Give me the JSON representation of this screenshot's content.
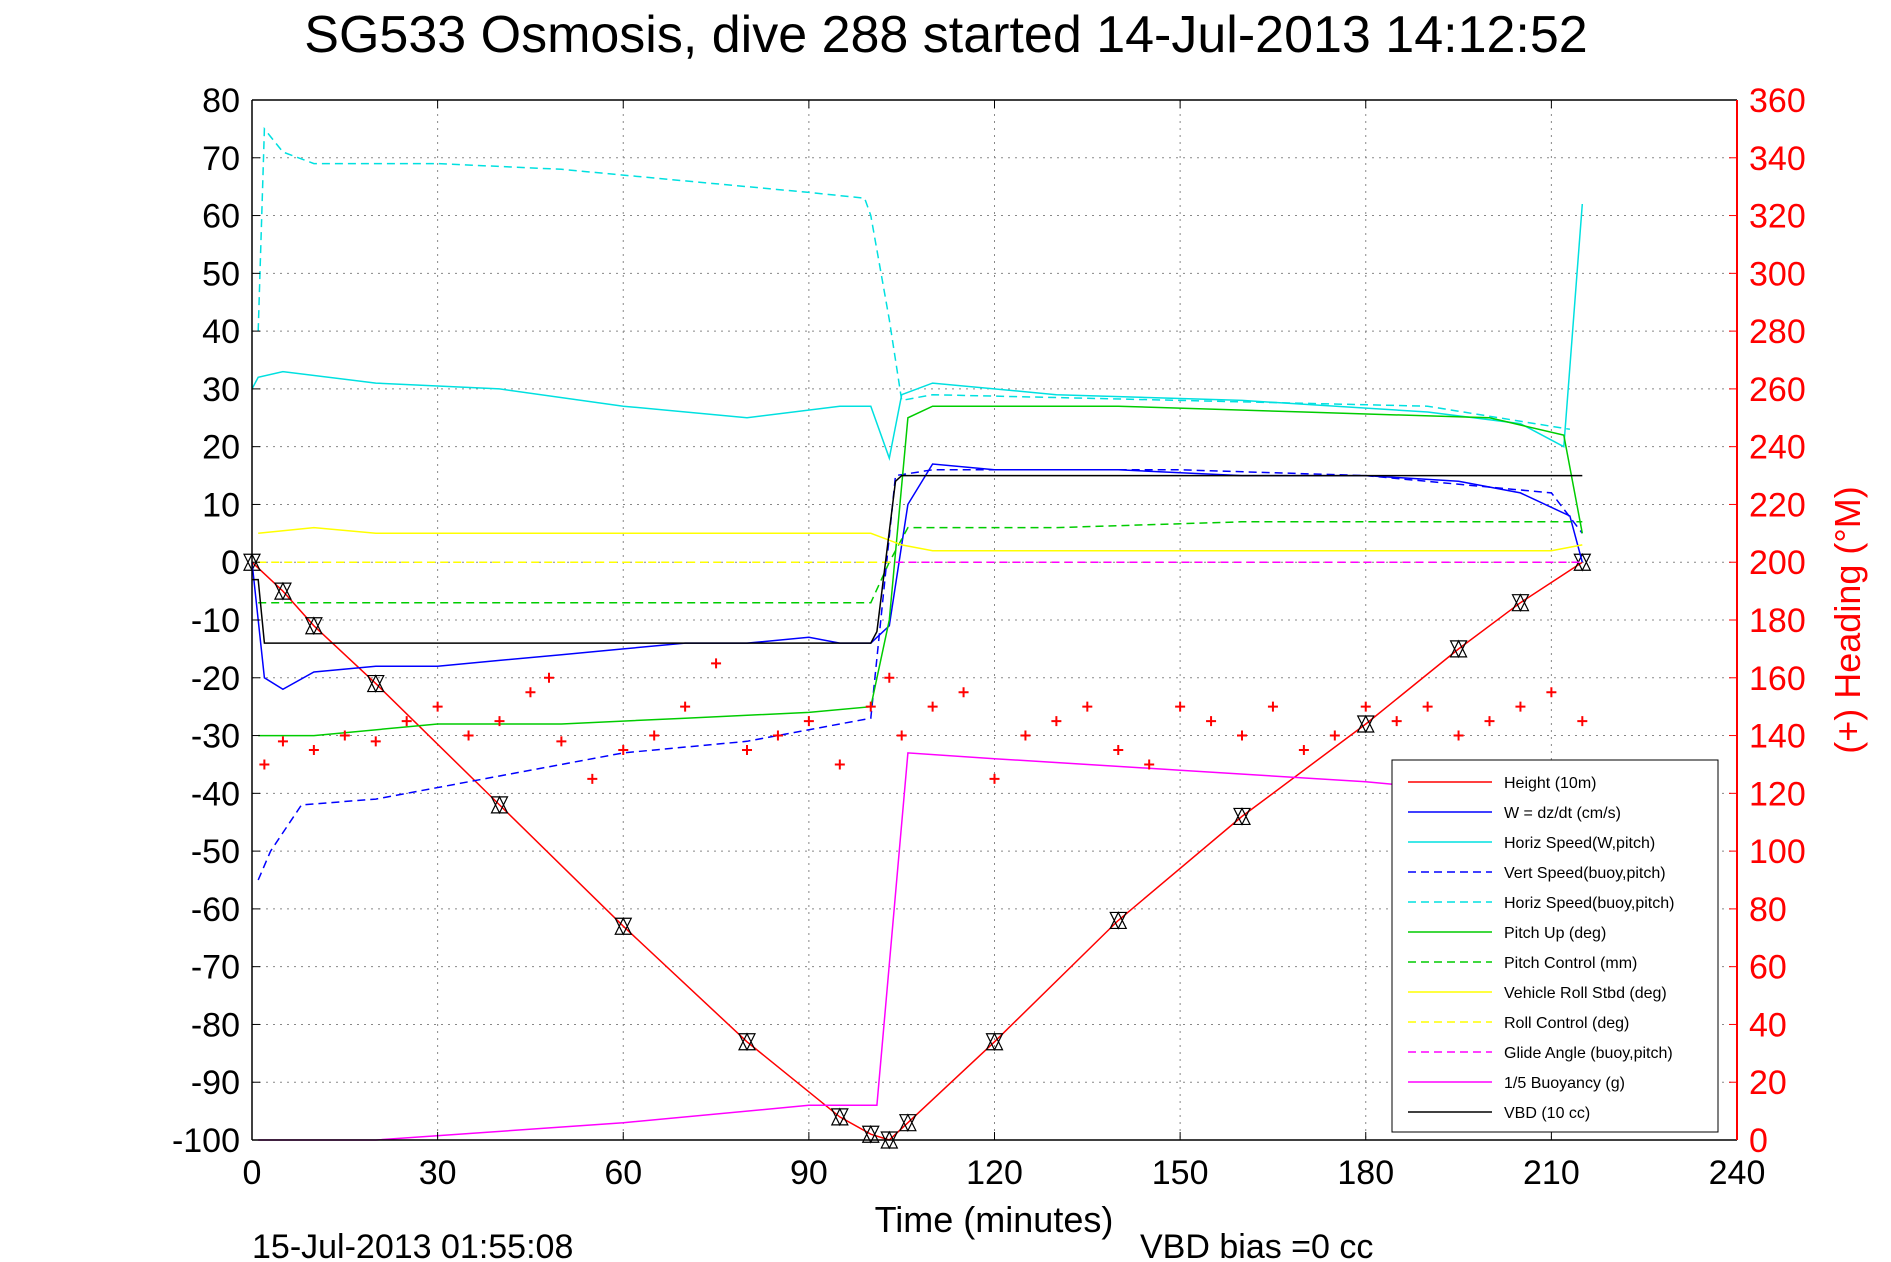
{
  "chart_data": {
    "type": "line",
    "title": "SG533 Osmosis, dive 288 started 14-Jul-2013 14:12:52",
    "xlabel": "Time (minutes)",
    "ylabel_right": "(+) Heading (°M)",
    "footer_left": "15-Jul-2013 01:55:08",
    "footer_right": "VBD bias =0 cc",
    "xlim": [
      0,
      240
    ],
    "ylim": [
      -100,
      80
    ],
    "ylim_right": [
      0,
      360
    ],
    "xticks": [
      "0",
      "30",
      "60",
      "90",
      "120",
      "150",
      "180",
      "210",
      "240"
    ],
    "yticks_left": [
      "80",
      "70",
      "60",
      "50",
      "40",
      "30",
      "20",
      "10",
      "0",
      "-10",
      "-20",
      "-30",
      "-40",
      "-50",
      "-60",
      "-70",
      "-80",
      "-90",
      "-100"
    ],
    "yticks_right": [
      "360",
      "340",
      "320",
      "300",
      "280",
      "260",
      "240",
      "220",
      "200",
      "180",
      "160",
      "140",
      "120",
      "100",
      "80",
      "60",
      "40",
      "20",
      "0"
    ],
    "grid": true,
    "legend_position": "bottom-right",
    "series": [
      {
        "name": "Height (10m)",
        "color": "#ff0000",
        "style": "solid",
        "x": [
          0,
          5,
          10,
          20,
          40,
          60,
          80,
          95,
          100,
          103,
          106,
          120,
          140,
          160,
          180,
          195,
          205,
          215
        ],
        "y": [
          0,
          -5,
          -11,
          -21,
          -42,
          -63,
          -83,
          -96,
          -99,
          -100,
          -97,
          -83,
          -62,
          -44,
          -28,
          -15,
          -7,
          0
        ]
      },
      {
        "name": "W = dz/dt (cm/s)",
        "color": "#0000ff",
        "style": "solid",
        "x": [
          0,
          2,
          5,
          10,
          20,
          30,
          40,
          50,
          60,
          70,
          80,
          90,
          95,
          100,
          103,
          106,
          110,
          120,
          140,
          160,
          180,
          195,
          205,
          213,
          215
        ],
        "y": [
          0,
          -20,
          -22,
          -19,
          -18,
          -18,
          -17,
          -16,
          -15,
          -14,
          -14,
          -13,
          -14,
          -14,
          -11,
          10,
          17,
          16,
          16,
          15,
          15,
          14,
          12,
          8,
          0
        ]
      },
      {
        "name": "Horiz Speed(W,pitch)",
        "color": "#00e0e0",
        "style": "solid",
        "x": [
          0,
          1,
          5,
          20,
          40,
          60,
          80,
          95,
          100,
          103,
          105,
          110,
          130,
          160,
          190,
          205,
          212,
          215
        ],
        "y": [
          30,
          32,
          33,
          31,
          30,
          27,
          25,
          27,
          27,
          18,
          29,
          31,
          29,
          28,
          26,
          24,
          20,
          62
        ]
      },
      {
        "name": "Vert Speed(buoy,pitch)",
        "color": "#0000ff",
        "style": "dashed",
        "x": [
          1,
          3,
          8,
          20,
          40,
          60,
          80,
          100,
          104,
          110,
          150,
          180,
          210,
          215
        ],
        "y": [
          -55,
          -50,
          -42,
          -41,
          -37,
          -33,
          -31,
          -27,
          15,
          16,
          16,
          15,
          12,
          5
        ]
      },
      {
        "name": "Horiz Speed(buoy,pitch)",
        "color": "#00e0e0",
        "style": "dashed",
        "x": [
          1,
          2,
          5,
          10,
          30,
          50,
          70,
          90,
          99,
          100,
          103,
          105,
          110,
          150,
          190,
          213
        ],
        "y": [
          40,
          75,
          71,
          69,
          69,
          68,
          66,
          64,
          63,
          60,
          42,
          28,
          29,
          28,
          27,
          23
        ]
      },
      {
        "name": "Pitch Up (deg)",
        "color": "#00cc00",
        "style": "solid",
        "x": [
          1,
          10,
          30,
          50,
          70,
          90,
          100,
          103,
          106,
          110,
          140,
          170,
          200,
          212,
          215
        ],
        "y": [
          -30,
          -30,
          -28,
          -28,
          -27,
          -26,
          -25,
          -10,
          25,
          27,
          27,
          26,
          25,
          22,
          5
        ]
      },
      {
        "name": "Pitch Control (mm)",
        "color": "#00cc00",
        "style": "dashed",
        "x": [
          1,
          20,
          40,
          60,
          80,
          100,
          103,
          106,
          130,
          160,
          190,
          215
        ],
        "y": [
          -7,
          -7,
          -7,
          -7,
          -7,
          -7,
          0,
          6,
          6,
          7,
          7,
          7
        ]
      },
      {
        "name": "Vehicle Roll Stbd (deg)",
        "color": "#ffff00",
        "style": "solid",
        "x": [
          1,
          10,
          20,
          30,
          40,
          50,
          60,
          70,
          80,
          90,
          100,
          105,
          110,
          130,
          150,
          170,
          190,
          210,
          215
        ],
        "y": [
          5,
          6,
          5,
          5,
          5,
          5,
          5,
          5,
          5,
          5,
          5,
          3,
          2,
          2,
          2,
          2,
          2,
          2,
          3
        ]
      },
      {
        "name": "Roll Control (deg)",
        "color": "#ffff00",
        "style": "dashed",
        "x": [
          1,
          20,
          40,
          60,
          80,
          100,
          105,
          130,
          160,
          190,
          215
        ],
        "y": [
          0,
          0,
          0,
          0,
          0,
          0,
          0,
          0,
          0,
          0,
          0
        ]
      },
      {
        "name": "Glide Angle (buoy,pitch)",
        "color": "#ff00ff",
        "style": "dashed",
        "x": [
          104,
          130,
          160,
          190,
          215
        ],
        "y": [
          0,
          0,
          0,
          0,
          0
        ]
      },
      {
        "name": "1/5 Buoyancy (g)",
        "color": "#ff00ff",
        "style": "solid",
        "x": [
          1,
          20,
          60,
          90,
          100,
          101,
          106,
          120,
          150,
          180,
          200
        ],
        "y": [
          -100,
          -100,
          -97,
          -94,
          -94,
          -94,
          -33,
          -34,
          -36,
          -38,
          -40
        ]
      },
      {
        "name": "VBD (10 cc)",
        "color": "#000000",
        "style": "solid",
        "x": [
          0,
          1,
          2,
          30,
          60,
          100,
          101,
          104,
          105,
          110,
          150,
          190,
          215
        ],
        "y": [
          -3,
          -3,
          -14,
          -14,
          -14,
          -14,
          -12,
          14,
          15,
          15,
          15,
          15,
          15
        ]
      },
      {
        "name": "Heading (+)",
        "color": "#ff0000",
        "axis": "right",
        "style": "marker-plus",
        "x": [
          2,
          5,
          10,
          15,
          20,
          25,
          30,
          35,
          40,
          45,
          48,
          50,
          55,
          60,
          65,
          70,
          75,
          80,
          85,
          90,
          95,
          100,
          103,
          105,
          110,
          115,
          120,
          125,
          130,
          135,
          140,
          145,
          150,
          155,
          160,
          165,
          170,
          175,
          180,
          185,
          190,
          195,
          200,
          205,
          210,
          215
        ],
        "y": [
          130,
          138,
          135,
          140,
          138,
          145,
          150,
          140,
          145,
          155,
          160,
          138,
          125,
          135,
          140,
          150,
          165,
          135,
          140,
          145,
          130,
          150,
          160,
          140,
          150,
          155,
          125,
          140,
          145,
          150,
          135,
          130,
          150,
          145,
          140,
          150,
          135,
          140,
          150,
          145,
          150,
          140,
          145,
          150,
          155,
          145
        ]
      }
    ]
  }
}
